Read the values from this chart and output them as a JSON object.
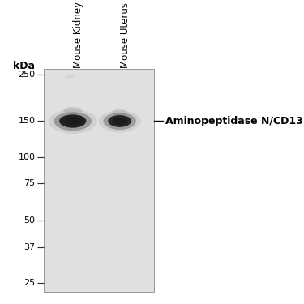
{
  "fig_width": 3.75,
  "fig_height": 3.75,
  "dpi": 100,
  "background_color": "#ffffff",
  "gel_bg_color": [
    220,
    220,
    220
  ],
  "kda_label": "kDa",
  "marker_labels": [
    "250",
    "150",
    "100",
    "75",
    "50",
    "37",
    "25"
  ],
  "marker_kda": [
    250,
    150,
    100,
    75,
    50,
    37,
    25
  ],
  "lane_labels": [
    "Mouse Kidney",
    "Mouse Uterus"
  ],
  "annotation_text": "Aminopeptidase N/CD13",
  "gel_outline_color": "#aaaaaa",
  "marker_line_color": "#333333",
  "label_fontsize": 8.5,
  "marker_fontsize": 8,
  "kda_fontsize": 9,
  "annotation_fontsize": 9
}
